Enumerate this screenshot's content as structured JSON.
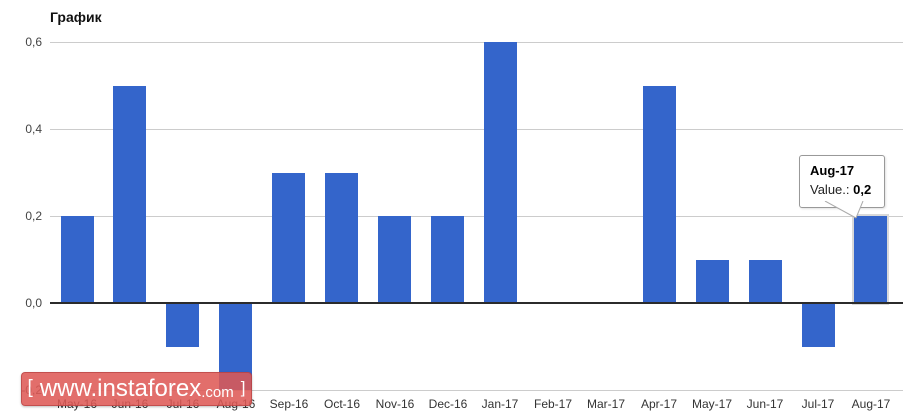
{
  "header": {
    "title": "График"
  },
  "chart_data": {
    "type": "bar",
    "title": "График",
    "categories": [
      "May-16",
      "Jun-16",
      "Jul-16",
      "Aug-16",
      "Sep-16",
      "Oct-16",
      "Nov-16",
      "Dec-16",
      "Jan-17",
      "Feb-17",
      "Mar-17",
      "Apr-17",
      "May-17",
      "Jun-17",
      "Jul-17",
      "Aug-17"
    ],
    "values": [
      0.2,
      0.5,
      -0.1,
      -0.2,
      0.3,
      0.3,
      0.2,
      0.2,
      0.6,
      0,
      0,
      0.5,
      0.1,
      0.1,
      -0.1,
      0.2
    ],
    "xlabel": "",
    "ylabel": "",
    "ylim": [
      -0.28,
      0.6
    ],
    "ytick_values": [
      0.6,
      0.4,
      0.2,
      0.0,
      -0.2
    ],
    "ytick_labels": [
      "0,6",
      "0,4",
      "0,2",
      "0,0",
      "-0,2"
    ],
    "grid": true,
    "legend": false,
    "highlighted_category": "Aug-17"
  },
  "tooltip": {
    "title": "Aug-17",
    "value_label": "Value.:",
    "value": "0,2"
  },
  "watermark": {
    "bracket_left": "[",
    "domain": "www.instaforex",
    "tld": ".com",
    "bracket_right": "]"
  },
  "colors": {
    "bar": "#3465cb",
    "grid": "#cccccc",
    "zero_axis": "#2b2b2b",
    "tooltip_border": "#999999",
    "watermark_bg": "#de5855",
    "axis_text": "#444444"
  }
}
